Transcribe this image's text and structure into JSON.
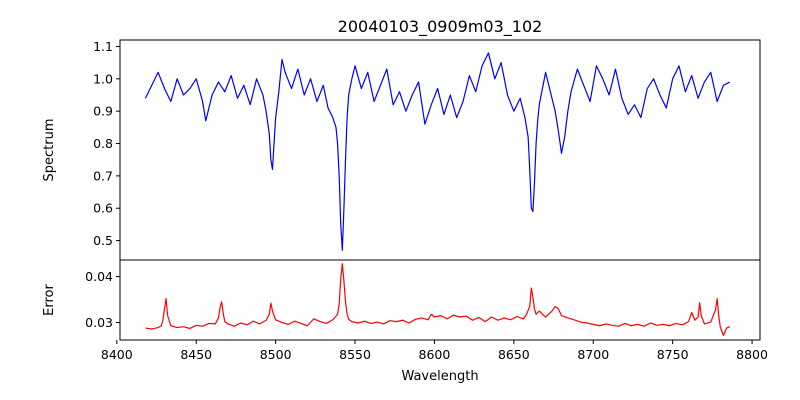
{
  "chart_data": {
    "type": "line",
    "title": "20040103_0909m03_102",
    "xlabel": "Wavelength",
    "xlim": [
      8402,
      8805
    ],
    "xticks": [
      8400,
      8450,
      8500,
      8550,
      8600,
      8650,
      8700,
      8750,
      8800
    ],
    "grid": false,
    "legend": "none",
    "panels": [
      {
        "id": "spectrum",
        "ylabel": "Spectrum",
        "ylim": [
          0.44,
          1.12
        ],
        "yticks": [
          "0.5",
          "0.6",
          "0.7",
          "0.8",
          "0.9",
          "1.0",
          "1.1"
        ],
        "color": "#0000ff",
        "series": [
          {
            "x": [
              8418,
              8422,
              8426,
              8430,
              8434,
              8438,
              8442,
              8446,
              8450,
              8454,
              8456,
              8460,
              8464,
              8468,
              8472,
              8476,
              8480,
              8484,
              8488,
              8492,
              8494,
              8496,
              8497,
              8498,
              8499,
              8500,
              8502,
              8504,
              8506,
              8510,
              8514,
              8518,
              8522,
              8526,
              8530,
              8533,
              8536,
              8538,
              8539,
              8540,
              8541,
              8542,
              8543,
              8544,
              8545,
              8546,
              8548,
              8550,
              8554,
              8558,
              8562,
              8566,
              8570,
              8574,
              8578,
              8582,
              8586,
              8590,
              8594,
              8598,
              8602,
              8606,
              8610,
              8614,
              8618,
              8622,
              8626,
              8630,
              8634,
              8638,
              8642,
              8646,
              8650,
              8654,
              8657,
              8659,
              8660,
              8661,
              8662,
              8663,
              8664,
              8665,
              8666,
              8668,
              8670,
              8674,
              8676,
              8678,
              8680,
              8682,
              8684,
              8686,
              8690,
              8694,
              8698,
              8702,
              8706,
              8710,
              8714,
              8718,
              8722,
              8726,
              8730,
              8734,
              8738,
              8742,
              8746,
              8750,
              8754,
              8758,
              8762,
              8766,
              8770,
              8774,
              8778,
              8782,
              8786
            ],
            "y": [
              0.94,
              0.98,
              1.02,
              0.97,
              0.93,
              1.0,
              0.95,
              0.97,
              1.0,
              0.93,
              0.87,
              0.95,
              0.99,
              0.96,
              1.01,
              0.94,
              0.98,
              0.92,
              1.0,
              0.95,
              0.9,
              0.83,
              0.75,
              0.72,
              0.8,
              0.88,
              0.96,
              1.06,
              1.02,
              0.97,
              1.03,
              0.95,
              1.0,
              0.93,
              0.98,
              0.91,
              0.88,
              0.85,
              0.8,
              0.7,
              0.55,
              0.47,
              0.6,
              0.75,
              0.88,
              0.95,
              1.0,
              1.04,
              0.97,
              1.02,
              0.93,
              0.98,
              1.03,
              0.92,
              0.96,
              0.9,
              0.95,
              0.99,
              0.86,
              0.92,
              0.97,
              0.89,
              0.95,
              0.88,
              0.93,
              1.01,
              0.96,
              1.04,
              1.08,
              1.0,
              1.05,
              0.95,
              0.9,
              0.94,
              0.88,
              0.82,
              0.72,
              0.6,
              0.59,
              0.68,
              0.8,
              0.87,
              0.92,
              0.97,
              1.02,
              0.94,
              0.9,
              0.84,
              0.77,
              0.82,
              0.9,
              0.96,
              1.03,
              0.98,
              0.93,
              1.04,
              1.0,
              0.95,
              1.03,
              0.94,
              0.89,
              0.92,
              0.88,
              0.97,
              1.0,
              0.95,
              0.91,
              1.0,
              1.04,
              0.96,
              1.01,
              0.94,
              0.99,
              1.02,
              0.93,
              0.98,
              0.99
            ]
          }
        ]
      },
      {
        "id": "error",
        "ylabel": "Error",
        "ylim": [
          0.0262,
          0.0436
        ],
        "yticks": [
          "0.03",
          "0.04"
        ],
        "color": "#ff0000",
        "series": [
          {
            "x": [
              8418,
              8422,
              8426,
              8428,
              8429,
              8430,
              8431,
              8432,
              8434,
              8438,
              8442,
              8446,
              8450,
              8454,
              8458,
              8462,
              8464,
              8465,
              8466,
              8467,
              8468,
              8470,
              8474,
              8478,
              8482,
              8486,
              8490,
              8494,
              8496,
              8497,
              8498,
              8500,
              8504,
              8508,
              8512,
              8516,
              8520,
              8524,
              8528,
              8532,
              8536,
              8539,
              8540,
              8541,
              8542,
              8543,
              8544,
              8545,
              8546,
              8548,
              8552,
              8556,
              8560,
              8564,
              8568,
              8572,
              8576,
              8580,
              8584,
              8588,
              8592,
              8596,
              8598,
              8600,
              8604,
              8608,
              8612,
              8616,
              8620,
              8624,
              8628,
              8632,
              8636,
              8640,
              8644,
              8648,
              8652,
              8656,
              8658,
              8660,
              8661,
              8662,
              8663,
              8664,
              8666,
              8670,
              8674,
              8676,
              8678,
              8680,
              8684,
              8688,
              8692,
              8696,
              8700,
              8704,
              8708,
              8712,
              8716,
              8720,
              8724,
              8728,
              8732,
              8736,
              8740,
              8744,
              8748,
              8752,
              8756,
              8760,
              8762,
              8764,
              8766,
              8767,
              8768,
              8770,
              8774,
              8777,
              8778,
              8779,
              8780,
              8782,
              8784,
              8786
            ],
            "y": [
              0.0288,
              0.0286,
              0.0289,
              0.0293,
              0.0305,
              0.033,
              0.0352,
              0.0315,
              0.0293,
              0.0289,
              0.0291,
              0.0287,
              0.0294,
              0.0292,
              0.0298,
              0.0297,
              0.031,
              0.0333,
              0.0345,
              0.032,
              0.0302,
              0.0297,
              0.0292,
              0.0299,
              0.0295,
              0.0303,
              0.0297,
              0.0305,
              0.0318,
              0.0342,
              0.0325,
              0.0306,
              0.03,
              0.0296,
              0.0303,
              0.0298,
              0.0293,
              0.0308,
              0.0302,
              0.0298,
              0.0306,
              0.0318,
              0.034,
              0.0395,
              0.0428,
              0.039,
              0.0345,
              0.0318,
              0.0307,
              0.0302,
              0.0299,
              0.0303,
              0.0298,
              0.0301,
              0.0297,
              0.0304,
              0.0302,
              0.0305,
              0.0299,
              0.0307,
              0.031,
              0.0306,
              0.0318,
              0.0312,
              0.0315,
              0.0308,
              0.0316,
              0.0312,
              0.0314,
              0.0305,
              0.0311,
              0.0302,
              0.0312,
              0.0305,
              0.031,
              0.0306,
              0.0313,
              0.0308,
              0.0318,
              0.0335,
              0.0375,
              0.0355,
              0.033,
              0.0318,
              0.0325,
              0.0312,
              0.0325,
              0.0335,
              0.033,
              0.0315,
              0.031,
              0.0306,
              0.0301,
              0.0299,
              0.0296,
              0.0293,
              0.0297,
              0.0294,
              0.0292,
              0.0298,
              0.0293,
              0.0296,
              0.0292,
              0.0299,
              0.0294,
              0.0296,
              0.0293,
              0.0298,
              0.0295,
              0.0302,
              0.0322,
              0.0305,
              0.0312,
              0.0343,
              0.0315,
              0.0297,
              0.0301,
              0.0328,
              0.0352,
              0.0315,
              0.029,
              0.0272,
              0.0288,
              0.0291
            ]
          }
        ]
      }
    ]
  }
}
